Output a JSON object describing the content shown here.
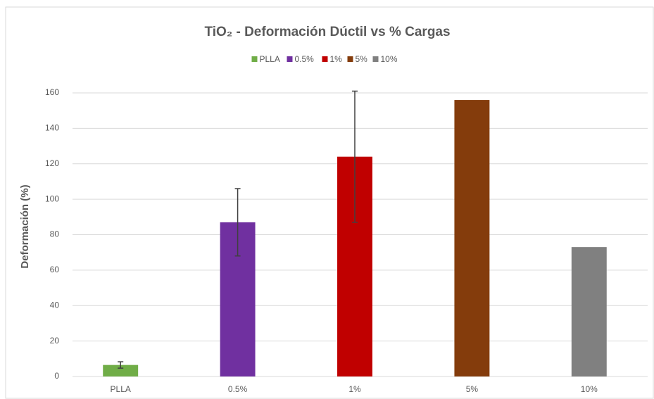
{
  "chart_data": {
    "type": "bar",
    "title": "TiO₂ - Deformación Dúctil vs % Cargas",
    "y_label": "Deformación (%)",
    "categories": [
      "PLLA",
      "0.5%",
      "1%",
      "5%",
      "10%"
    ],
    "values": [
      6.5,
      87,
      124,
      156,
      73
    ],
    "errors": [
      1.8,
      19,
      37,
      null,
      null
    ],
    "colors": [
      "#70ad47",
      "#7030a0",
      "#c00000",
      "#843c0c",
      "#808080"
    ],
    "ylim": [
      0,
      160
    ],
    "yticks": [
      0,
      20,
      40,
      60,
      80,
      100,
      120,
      140,
      160
    ],
    "grid": true,
    "legend": "top"
  }
}
